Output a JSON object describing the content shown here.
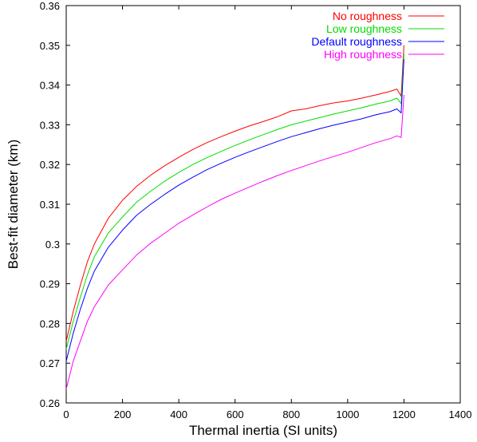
{
  "chart_data": {
    "type": "line",
    "xlabel": "Thermal inertia (SI units)",
    "ylabel": "Best-fit diameter (km)",
    "xlim": [
      0,
      1400
    ],
    "ylim": [
      0.26,
      0.36
    ],
    "x_ticks": [
      "0",
      "200",
      "400",
      "600",
      "800",
      "1000",
      "1200",
      "1400"
    ],
    "y_ticks": [
      "0.26",
      "0.27",
      "0.28",
      "0.29",
      "0.3",
      "0.31",
      "0.32",
      "0.33",
      "0.34",
      "0.35",
      "0.36"
    ],
    "grid": false,
    "legend_position": "top-right",
    "x": [
      0,
      25,
      50,
      75,
      100,
      150,
      200,
      250,
      300,
      350,
      400,
      450,
      500,
      550,
      600,
      650,
      700,
      750,
      800,
      850,
      900,
      950,
      1000,
      1050,
      1100,
      1150,
      1175,
      1190,
      1200
    ],
    "series": [
      {
        "name": "No roughness",
        "color": "#ff0000",
        "values": [
          0.2755,
          0.283,
          0.2895,
          0.2955,
          0.3,
          0.3065,
          0.311,
          0.3145,
          0.3173,
          0.3197,
          0.3218,
          0.3238,
          0.3255,
          0.327,
          0.3284,
          0.3297,
          0.3308,
          0.332,
          0.3335,
          0.334,
          0.3348,
          0.3355,
          0.336,
          0.3367,
          0.3375,
          0.3384,
          0.339,
          0.3372,
          0.35
        ]
      },
      {
        "name": "Low roughness",
        "color": "#00dd00",
        "values": [
          0.2735,
          0.2805,
          0.2865,
          0.2922,
          0.2968,
          0.3028,
          0.3068,
          0.3105,
          0.3133,
          0.3158,
          0.318,
          0.32,
          0.3217,
          0.3233,
          0.3248,
          0.3262,
          0.3275,
          0.3288,
          0.33,
          0.3309,
          0.3318,
          0.3327,
          0.3335,
          0.3343,
          0.3352,
          0.336,
          0.3367,
          0.3353,
          0.348
        ]
      },
      {
        "name": "Default roughness",
        "color": "#0000ff",
        "values": [
          0.2705,
          0.2775,
          0.2835,
          0.2888,
          0.2932,
          0.2992,
          0.3035,
          0.3072,
          0.31,
          0.3125,
          0.3148,
          0.3168,
          0.3187,
          0.3203,
          0.3218,
          0.3232,
          0.3245,
          0.3258,
          0.327,
          0.328,
          0.329,
          0.3299,
          0.3307,
          0.3315,
          0.3325,
          0.3333,
          0.334,
          0.333,
          0.3465
        ]
      },
      {
        "name": "High roughness",
        "color": "#ff00ff",
        "values": [
          0.2635,
          0.2705,
          0.2755,
          0.2805,
          0.2842,
          0.2897,
          0.2935,
          0.2972,
          0.3002,
          0.3027,
          0.3052,
          0.3073,
          0.3093,
          0.3112,
          0.3128,
          0.3143,
          0.3158,
          0.3172,
          0.3185,
          0.3197,
          0.3209,
          0.322,
          0.3231,
          0.3243,
          0.3255,
          0.3265,
          0.3272,
          0.3268,
          0.3375
        ]
      }
    ]
  }
}
